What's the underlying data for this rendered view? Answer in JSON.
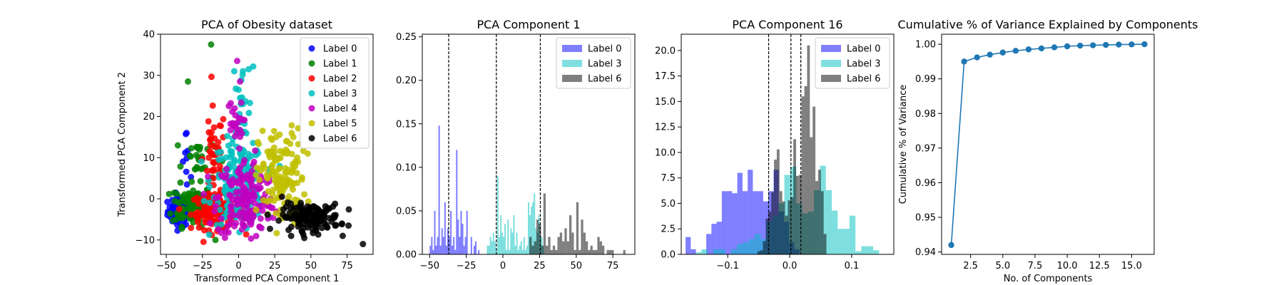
{
  "colors": {
    "Label 0": "#0000ff",
    "Label 1": "#008000",
    "Label 2": "#ff0000",
    "Label 3": "#00bfbf",
    "Label 4": "#bf00bf",
    "Label 5": "#bfbf00",
    "Label 6": "#000000",
    "line": "#1f77b4"
  },
  "chart_data": [
    {
      "type": "scatter",
      "title": "PCA of Obesity dataset",
      "xlabel": "Transformed PCA Component 1",
      "ylabel": "Transformed PCA Component 2",
      "xlim": [
        -54,
        93
      ],
      "ylim": [
        -13.5,
        40
      ],
      "xticks": [
        -50,
        -25,
        0,
        25,
        50,
        75
      ],
      "yticks": [
        -10,
        0,
        10,
        20,
        30,
        40
      ],
      "legend_position": "top-right",
      "series": [
        {
          "name": "Label 0",
          "clusters": [
            {
              "cx": -41,
              "cy": -3,
              "sx": 4,
              "sy": 1.8,
              "n": 90
            },
            {
              "cx": -35,
              "cy": 8,
              "sx": 2,
              "sy": 4,
              "n": 8
            }
          ],
          "points": [
            [
              -36,
              16
            ]
          ]
        },
        {
          "name": "Label 1",
          "clusters": [
            {
              "cx": -32,
              "cy": -1.5,
              "sx": 7,
              "sy": 2.5,
              "n": 110
            },
            {
              "cx": -28,
              "cy": 10,
              "sx": 6,
              "sy": 3,
              "n": 25
            }
          ],
          "points": [
            [
              -19,
              37.5
            ],
            [
              -35,
              28.5
            ],
            [
              -16,
              -10
            ],
            [
              -42,
              13
            ]
          ]
        },
        {
          "name": "Label 2",
          "clusters": [
            {
              "cx": -15,
              "cy": -3,
              "sx": 9,
              "sy": 2.2,
              "n": 120
            },
            {
              "cx": -17,
              "cy": 10,
              "sx": 4,
              "sy": 6,
              "n": 45
            }
          ],
          "points": []
        },
        {
          "name": "Label 3",
          "clusters": [
            {
              "cx": 0,
              "cy": 4,
              "sx": 9,
              "sy": 5,
              "n": 170
            },
            {
              "cx": 2,
              "cy": 22,
              "sx": 4,
              "sy": 5,
              "n": 18
            }
          ],
          "points": [
            [
              -3,
              31
            ],
            [
              3,
              31
            ],
            [
              7,
              31.5
            ],
            [
              0,
              26.5
            ]
          ]
        },
        {
          "name": "Label 4",
          "clusters": [
            {
              "cx": 5,
              "cy": 0,
              "sx": 10,
              "sy": 5,
              "n": 170
            },
            {
              "cx": -3,
              "cy": 18,
              "sx": 3,
              "sy": 3,
              "n": 25
            }
          ],
          "points": [
            [
              1,
              28.5
            ],
            [
              -1,
              33.5
            ]
          ]
        },
        {
          "name": "Label 5",
          "clusters": [
            {
              "cx": 30,
              "cy": 5,
              "sx": 8,
              "sy": 6,
              "n": 140
            }
          ],
          "points": [
            [
              26,
              15
            ],
            [
              33,
              14
            ]
          ]
        },
        {
          "name": "Label 6",
          "clusters": [
            {
              "cx": 50,
              "cy": -4.5,
              "sx": 10,
              "sy": 1.6,
              "n": 150
            }
          ],
          "points": [
            [
              86,
              -11
            ],
            [
              76,
              -6.5
            ],
            [
              72,
              -9
            ],
            [
              30,
              0.5
            ]
          ]
        }
      ]
    },
    {
      "type": "histogram",
      "title": "PCA Component 1",
      "xlim": [
        -55,
        90
      ],
      "ylim": [
        0,
        0.253
      ],
      "xticks": [
        -50,
        -25,
        0,
        25,
        50,
        75
      ],
      "yticks": [
        0.0,
        0.05,
        0.1,
        0.15,
        0.2,
        0.25
      ],
      "vlines": [
        -37,
        -4.5,
        25.5
      ],
      "legend_position": "top-right",
      "series": [
        {
          "name": "Label 0",
          "bin_start": -50,
          "bin_width": 1.0,
          "values": [
            0.01,
            0.02,
            0.005,
            0.05,
            0.01,
            0.02,
            0.148,
            0.01,
            0.03,
            0.02,
            0.06,
            0.01,
            0.03,
            0.02,
            0.05,
            0.01,
            0.02,
            0.005,
            0.12,
            0.04,
            0.02,
            0.05,
            0.035,
            0.01,
            0.02,
            0.05,
            0,
            0,
            0.02,
            0,
            0.01,
            0.015,
            0,
            0.005
          ]
        },
        {
          "name": "Label 3",
          "bin_start": -11,
          "bin_width": 1.0,
          "values": [
            0.01,
            0.01,
            0.02,
            0.015,
            0.025,
            0.015,
            0.005,
            0.09,
            0.02,
            0.045,
            0.025,
            0.02,
            0.035,
            0.005,
            0.04,
            0.005,
            0.03,
            0.025,
            0.045,
            0.01,
            0.025,
            0.005,
            0.01,
            0.015,
            0.005,
            0.02,
            0.005,
            0.01,
            0.06,
            0.045,
            0.055,
            0.06,
            0.07,
            0.03,
            0.025,
            0.045,
            0.02,
            0.02,
            0.01
          ]
        },
        {
          "name": "Label 6",
          "bin_start": 18,
          "bin_width": 1.6,
          "values": [
            0.02,
            0.01,
            0.015,
            0.04,
            0.035,
            0.01,
            0.07,
            0.01,
            0.02,
            0.005,
            0.01,
            0.005,
            0.02,
            0.025,
            0.015,
            0.03,
            0.015,
            0.045,
            0.025,
            0.005,
            0.06,
            0.005,
            0.04,
            0.025,
            0.015,
            0.005,
            0.01,
            0.005,
            0.005,
            0.02,
            0.015,
            0.01,
            0,
            0.005,
            0.005,
            0.005,
            0,
            0,
            0,
            0,
            0.005
          ]
        }
      ]
    },
    {
      "type": "histogram",
      "title": "PCA Component 16",
      "xlim": [
        -0.175,
        0.168
      ],
      "ylim": [
        0,
        21.6
      ],
      "xticks": [
        -0.1,
        0.0,
        0.1
      ],
      "yticks": [
        0.0,
        2.5,
        5.0,
        7.5,
        10.0,
        12.5,
        15.0,
        17.5,
        20.0
      ],
      "vlines": [
        -0.034,
        0.002,
        0.018
      ],
      "legend_position": "top-right",
      "series": [
        {
          "name": "Label 0",
          "bin_start": -0.168,
          "bin_width": 0.00835,
          "values": [
            1.7,
            0.5,
            0,
            0,
            2.0,
            3.0,
            3.2,
            6.2,
            6.2,
            6.0,
            8.0,
            6.2,
            8.3,
            6.2,
            6.2,
            5.2,
            6.2,
            8.3,
            4.2,
            3.2,
            1.2,
            0.5
          ]
        },
        {
          "name": "Label 3",
          "bin_start": -0.152,
          "bin_width": 0.00956,
          "values": [
            0.2,
            0.5,
            0,
            0.5,
            0.5,
            0,
            0.5,
            1.0,
            1.2,
            1.5,
            2.0,
            1.5,
            3.2,
            3.8,
            5.0,
            7.8,
            8.6,
            5.0,
            4.0,
            4.2,
            6.3,
            8.7,
            6.3,
            4.3,
            2.5,
            2.5,
            3.8,
            0.3,
            0.8,
            0.8,
            0.4
          ]
        },
        {
          "name": "Label 6",
          "bin_start": -0.052,
          "bin_width": 0.00445,
          "values": [
            0.3,
            0.4,
            1.3,
            3.5,
            4.2,
            6.1,
            9.3,
            10.3,
            6.2,
            5.2,
            3.8,
            5.3,
            5.6,
            11.3,
            7.7,
            7.8,
            15.5,
            16.5,
            20.5,
            11.5,
            14.5,
            7.2,
            8.3,
            6.2,
            2.0
          ]
        }
      ]
    },
    {
      "type": "line",
      "title": "Cumulative % of Variance Explained by Components",
      "xlabel": "No. of Components",
      "ylabel": "Cumulative % of Variance",
      "xlim": [
        0.25,
        16.75
      ],
      "ylim": [
        0.9393,
        1.0029
      ],
      "xticks": [
        2.5,
        5.0,
        7.5,
        10.0,
        12.5,
        15.0
      ],
      "yticks": [
        0.94,
        0.95,
        0.96,
        0.97,
        0.98,
        0.99,
        1.0
      ],
      "x": [
        1,
        2,
        3,
        4,
        5,
        6,
        7,
        8,
        9,
        10,
        11,
        12,
        13,
        14,
        15,
        16
      ],
      "y": [
        0.942,
        0.995,
        0.9962,
        0.997,
        0.9976,
        0.9981,
        0.9985,
        0.9988,
        0.9991,
        0.9994,
        0.9996,
        0.9997,
        0.9998,
        0.9999,
        0.99995,
        1.0
      ]
    }
  ]
}
